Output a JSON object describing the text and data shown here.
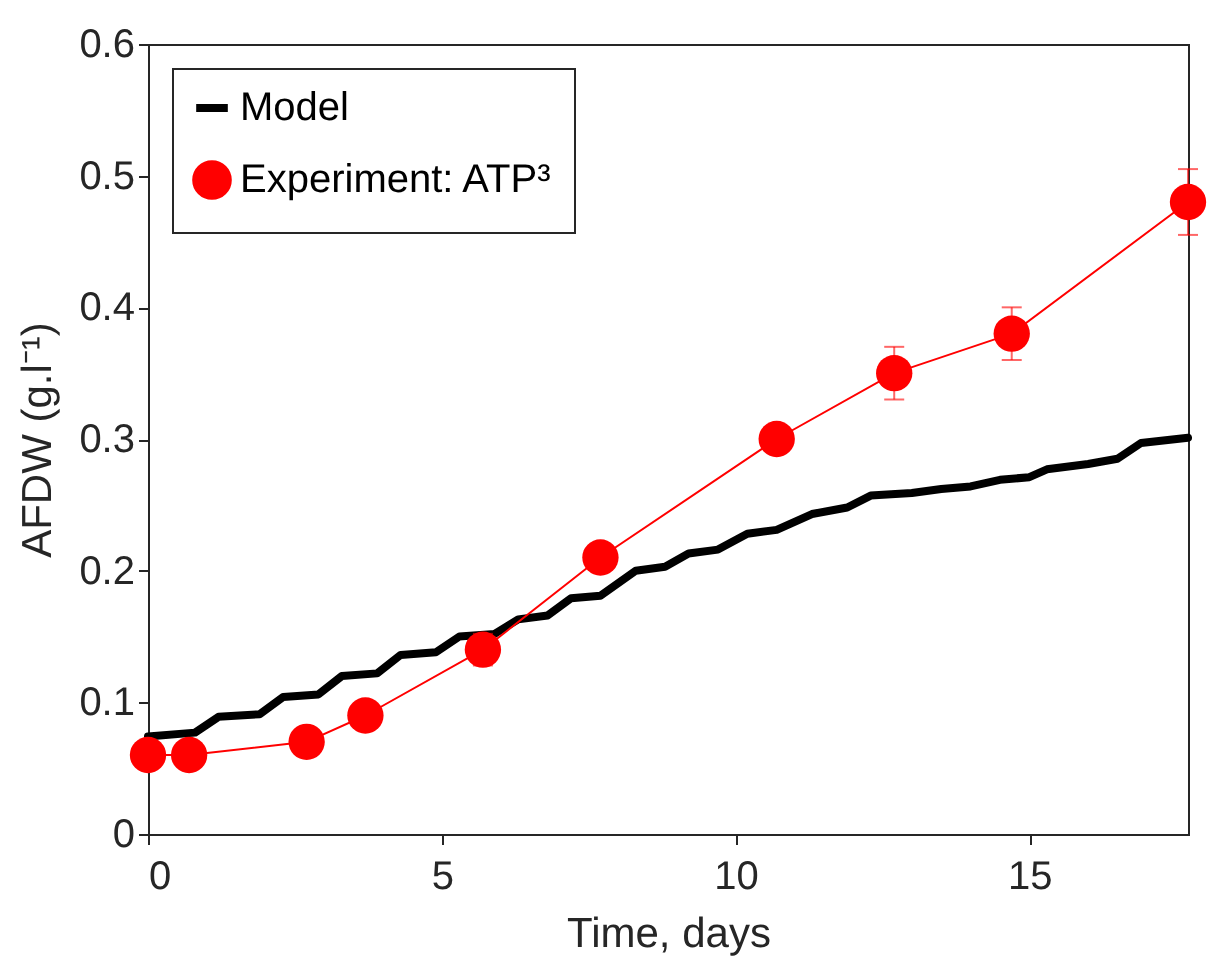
{
  "chart_data": {
    "type": "line",
    "xlabel": "Time, days",
    "ylabel": "AFDW (g.l⁻¹)",
    "xlim": [
      0,
      17.7
    ],
    "ylim": [
      0,
      0.6
    ],
    "xticks": [
      0,
      5,
      10,
      15
    ],
    "yticks": [
      0,
      0.1,
      0.2,
      0.3,
      0.4,
      0.5,
      0.6
    ],
    "grid": false,
    "legend": "top left",
    "series": [
      {
        "name": "Model",
        "color": "#000000",
        "marker": "none",
        "line_style": "solid",
        "x": [
          0,
          0.8,
          1.2,
          1.9,
          2.3,
          2.9,
          3.3,
          3.9,
          4.3,
          4.9,
          5.3,
          5.9,
          6.3,
          6.8,
          7.2,
          7.7,
          8.3,
          8.8,
          9.2,
          9.7,
          10.2,
          10.7,
          11.3,
          11.9,
          12.3,
          13,
          13.5,
          14,
          14.5,
          15,
          15.3,
          16,
          16.5,
          16.9,
          17.7
        ],
        "values": [
          0.074,
          0.077,
          0.089,
          0.091,
          0.104,
          0.106,
          0.12,
          0.122,
          0.136,
          0.138,
          0.15,
          0.152,
          0.163,
          0.166,
          0.179,
          0.181,
          0.2,
          0.203,
          0.213,
          0.216,
          0.228,
          0.231,
          0.243,
          0.248,
          0.257,
          0.259,
          0.262,
          0.264,
          0.269,
          0.271,
          0.277,
          0.281,
          0.285,
          0.297,
          0.301
        ]
      },
      {
        "name": "Experiment: ATP³",
        "color": "#ff0000",
        "marker": "circle",
        "line_style": "solid",
        "x": [
          0,
          0.7,
          2.7,
          3.7,
          5.7,
          7.7,
          10.7,
          12.7,
          14.7,
          17.7
        ],
        "values": [
          0.06,
          0.06,
          0.07,
          0.09,
          0.14,
          0.21,
          0.3,
          0.35,
          0.38,
          0.48
        ],
        "errors": [
          null,
          null,
          null,
          null,
          0.012,
          null,
          null,
          0.02,
          0.02,
          0.025
        ]
      }
    ]
  }
}
